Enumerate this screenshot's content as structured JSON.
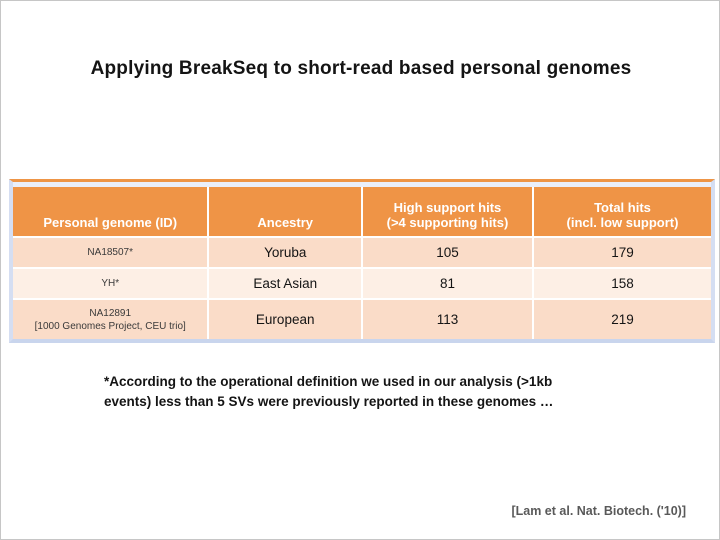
{
  "slide": {
    "title": "Applying BreakSeq to short-read based personal genomes",
    "footnote_lines": [
      "*According to the operational definition we used in our analysis (>1kb",
      "events) less than 5 SVs were previously reported in these genomes …"
    ],
    "citation": "[Lam et al. Nat. Biotech. ('10)]"
  },
  "colors": {
    "header_bg": "#EF9446",
    "row_odd_bg": "#FADCC8",
    "row_even_bg": "#FDEFE5",
    "frame_border": "#D5DEF2",
    "frame_border_bottom": "#C9D5ED",
    "frame_gap": "#EAEFFA",
    "top_border": "#EE9546",
    "citation_color": "#595959"
  },
  "table": {
    "columns": [
      {
        "label_lines": [
          "Personal genome (ID)"
        ]
      },
      {
        "label_lines": [
          "Ancestry"
        ]
      },
      {
        "label_lines": [
          "High support hits",
          "(>4 supporting hits)"
        ]
      },
      {
        "label_lines": [
          "Total hits",
          "(incl. low support)"
        ]
      }
    ],
    "rows": [
      {
        "id_lines": [
          "NA18507*"
        ],
        "ancestry": "Yoruba",
        "high_support_hits": "105",
        "total_hits": "179"
      },
      {
        "id_lines": [
          "YH*"
        ],
        "ancestry": "East Asian",
        "high_support_hits": "81",
        "total_hits": "158"
      },
      {
        "id_lines": [
          "NA12891",
          "[1000 Genomes Project, CEU trio]"
        ],
        "ancestry": "European",
        "high_support_hits": "113",
        "total_hits": "219"
      }
    ]
  }
}
